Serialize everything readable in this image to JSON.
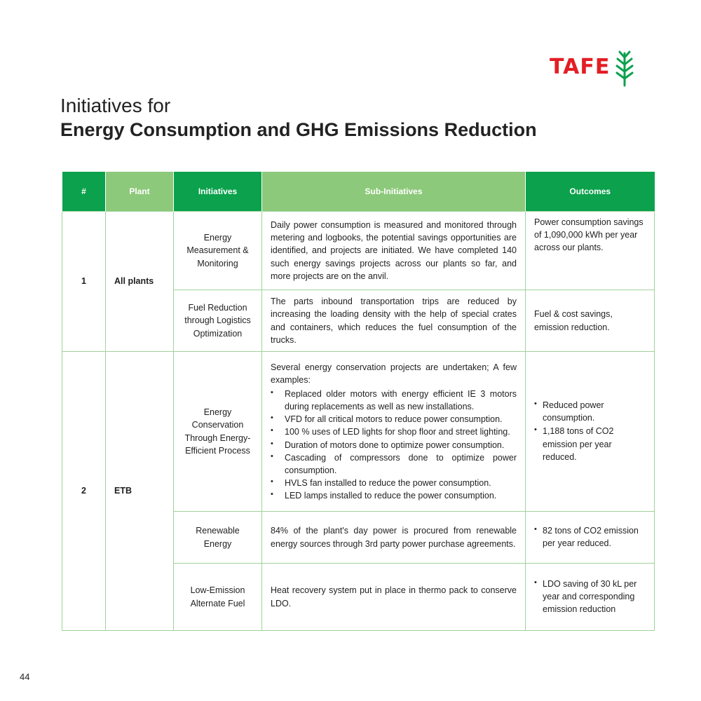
{
  "brand": {
    "name": "TAFE",
    "color": "#e31e24",
    "leaf_color": "#0ca14c"
  },
  "title": {
    "line1": "Initiatives for",
    "line2": "Energy Consumption and GHG Emissions Reduction"
  },
  "table": {
    "headers": [
      "#",
      "Plant",
      "Initiatives",
      "Sub-Initiatives",
      "Outcomes"
    ],
    "header_colors": {
      "dark_green": "#0ca14c",
      "light_green": "#8cc97a"
    },
    "groups": [
      {
        "num": "1",
        "plant": "All plants",
        "rows": [
          {
            "initiative": "Energy Measurement & Monitoring",
            "sub_text": "Daily power consumption is measured and monitored through metering and logbooks, the potential savings opportunities are identified, and projects are initiated. We have completed 140 such energy savings projects across our plants so far, and more projects are on the anvil.",
            "outcome_text": "Power consumption savings of 1,090,000 kWh per year across our plants."
          },
          {
            "initiative": "Fuel Reduction through Logistics Optimization",
            "sub_text": "The parts inbound transportation trips are reduced by increasing the loading density with the help of special crates and containers, which reduces the fuel consumption of the trucks.",
            "outcome_text": "Fuel & cost savings, emission reduction."
          }
        ]
      },
      {
        "num": "2",
        "plant": "ETB",
        "rows": [
          {
            "initiative": "Energy Conservation Through Energy-Efficient Process",
            "sub_text": "Several energy conservation projects are undertaken; A few examples:",
            "sub_bullets": [
              "Replaced older motors with energy efficient IE 3 motors during replacements as well as new installations.",
              "VFD for all critical motors to reduce power consumption.",
              "100 % uses of LED lights for shop floor and street lighting.",
              "Duration of motors done to optimize power consumption.",
              "Cascading of compressors done to optimize power consumption.",
              "HVLS fan installed to reduce the power consumption.",
              "LED lamps installed to reduce the power consumption."
            ],
            "outcome_bullets": [
              "Reduced power consumption.",
              "1,188 tons of CO2 emission per year reduced."
            ]
          },
          {
            "initiative": "Renewable Energy",
            "sub_text": "84% of the plant's day power is procured from renewable energy sources through 3rd party power purchase agreements.",
            "outcome_bullets": [
              "82 tons of CO2 emission per year reduced."
            ]
          },
          {
            "initiative": "Low-Emission Alternate Fuel",
            "sub_text": "Heat recovery system put in place in thermo pack to conserve LDO.",
            "outcome_bullets": [
              "LDO saving of 30 kL per year and corresponding emission reduction"
            ]
          }
        ]
      }
    ]
  },
  "page_number": "44"
}
